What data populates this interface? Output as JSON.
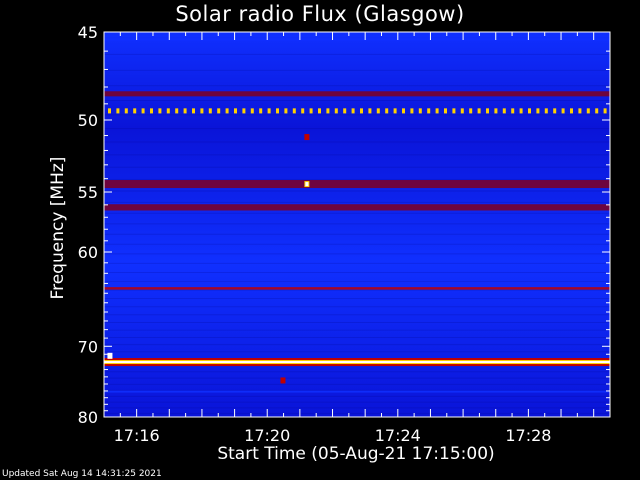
{
  "chart_data": {
    "type": "heatmap",
    "title": "Solar radio Flux (Glasgow)",
    "xlabel": "Start Time (05-Aug-21 17:15:00)",
    "ylabel": "Frequency [MHz]",
    "x_start": "17:15:00",
    "x_end": "17:30:30",
    "x_ticks": [
      {
        "time": "17:16",
        "label": "17:16"
      },
      {
        "time": "17:20",
        "label": "17:20"
      },
      {
        "time": "17:24",
        "label": "17:24"
      },
      {
        "time": "17:28",
        "label": "17:28"
      }
    ],
    "y_range": [
      45,
      80
    ],
    "y_ticks": [
      {
        "value": 45,
        "label": "45"
      },
      {
        "value": 50,
        "label": "50"
      },
      {
        "value": 55,
        "label": "55"
      },
      {
        "value": 60,
        "label": "60"
      },
      {
        "value": 70,
        "label": "70"
      },
      {
        "value": 80,
        "label": "80"
      }
    ],
    "colormap": [
      "#000080",
      "#0000c8",
      "#1030ff",
      "#800020",
      "#c00000",
      "#ff2000",
      "#ffd000",
      "#ffffff"
    ],
    "background_color": "#0a14d8",
    "bands": [
      {
        "freq": 45.3,
        "width": 0.3,
        "level": 0.3
      },
      {
        "freq": 48.4,
        "width": 0.3,
        "level": 0.45
      },
      {
        "freq": 49.4,
        "width": 0.25,
        "level": 0.6,
        "dotted": true
      },
      {
        "freq": 54.4,
        "width": 0.6,
        "level": 0.45
      },
      {
        "freq": 56.2,
        "width": 0.5,
        "level": 0.4
      },
      {
        "freq": 63.5,
        "width": 0.25,
        "level": 0.6
      },
      {
        "freq": 72.0,
        "width": 0.25,
        "level": 1.0
      },
      {
        "freq": 76.0,
        "width": 0.1,
        "level": 0.3
      }
    ],
    "spots": [
      {
        "time": "17:21:12",
        "freq": 51.1,
        "level": 0.6
      },
      {
        "time": "17:21:12",
        "freq": 54.4,
        "level": 0.9
      },
      {
        "time": "17:15:10",
        "freq": 71.2,
        "level": 1.0
      },
      {
        "time": "17:20:28",
        "freq": 74.5,
        "level": 0.55
      }
    ]
  },
  "footer": "Updated Sat Aug 14 14:31:25 2021"
}
